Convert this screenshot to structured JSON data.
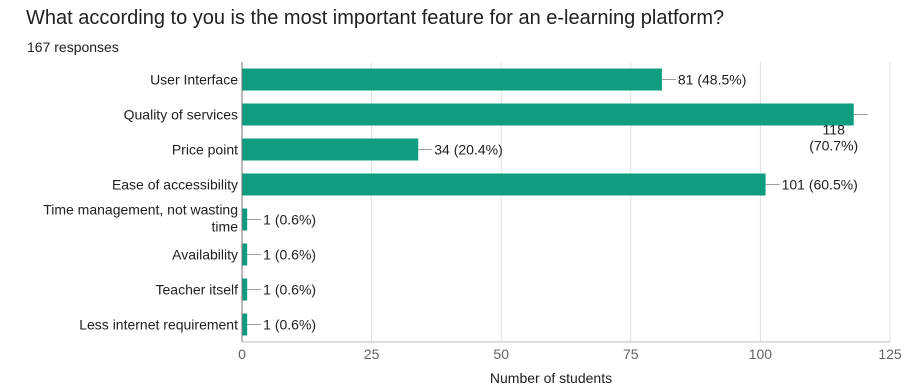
{
  "title": "What according to you is the most important feature for an e-learning platform?",
  "subtitle": "167 responses",
  "chart_data": {
    "type": "bar",
    "orientation": "horizontal",
    "categories": [
      "User Interface",
      "Quality of services",
      "Price point",
      "Ease of accessibility",
      "Time management, not wasting time",
      "Availability",
      "Teacher itself",
      "Less internet requirement"
    ],
    "values": [
      81,
      118,
      34,
      101,
      1,
      1,
      1,
      1
    ],
    "data_labels": [
      "81 (48.5%)",
      "118 (70.7%)",
      "34 (20.4%)",
      "101 (60.5%)",
      "1 (0.6%)",
      "1 (0.6%)",
      "1 (0.6%)",
      "1 (0.6%)"
    ],
    "xlabel": "Number of students",
    "xlim": [
      0,
      125
    ],
    "xticks": [
      0,
      25,
      50,
      75,
      100,
      125
    ],
    "grid": true,
    "bar_color": "#0f9d80"
  }
}
